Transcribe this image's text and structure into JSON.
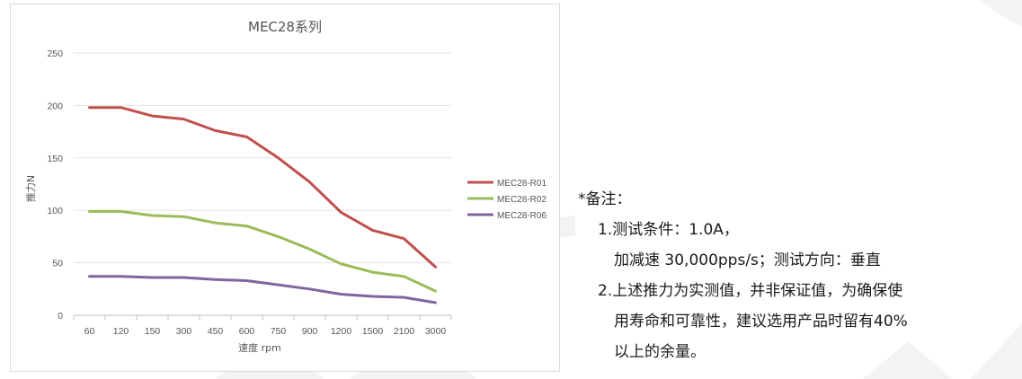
{
  "chart_data": {
    "type": "line",
    "title": "MEC28系列",
    "xlabel": "速度 rpm",
    "ylabel": "推力N",
    "categories": [
      "60",
      "120",
      "150",
      "300",
      "450",
      "600",
      "750",
      "900",
      "1200",
      "1500",
      "2100",
      "3000"
    ],
    "yticks": [
      0,
      50,
      100,
      150,
      200,
      250
    ],
    "ylim": [
      0,
      250
    ],
    "grid": true,
    "legend_position": "right",
    "series": [
      {
        "name": "MEC28-R01",
        "color": "#c0504d",
        "values": [
          198,
          198,
          190,
          187,
          176,
          170,
          150,
          127,
          98,
          81,
          73,
          46
        ]
      },
      {
        "name": "MEC28-R02",
        "color": "#9bbb59",
        "values": [
          99,
          99,
          95,
          94,
          88,
          85,
          75,
          63,
          49,
          41,
          37,
          23
        ]
      },
      {
        "name": "MEC28-R06",
        "color": "#8064a2",
        "values": [
          37,
          37,
          36,
          36,
          34,
          33,
          29,
          25,
          20,
          18,
          17,
          12
        ]
      }
    ]
  },
  "notes": {
    "heading": "*备注：",
    "item1_line1": "1.测试条件：1.0A，",
    "item1_line2": "加减速 30,000pps/s；测试方向：垂直",
    "item2_line1": "2.上述推力为实测值，并非保证值，为确保使",
    "item2_line2": "用寿命和可靠性，建议选用产品时留有40%",
    "item2_line3": "以上的余量。"
  }
}
